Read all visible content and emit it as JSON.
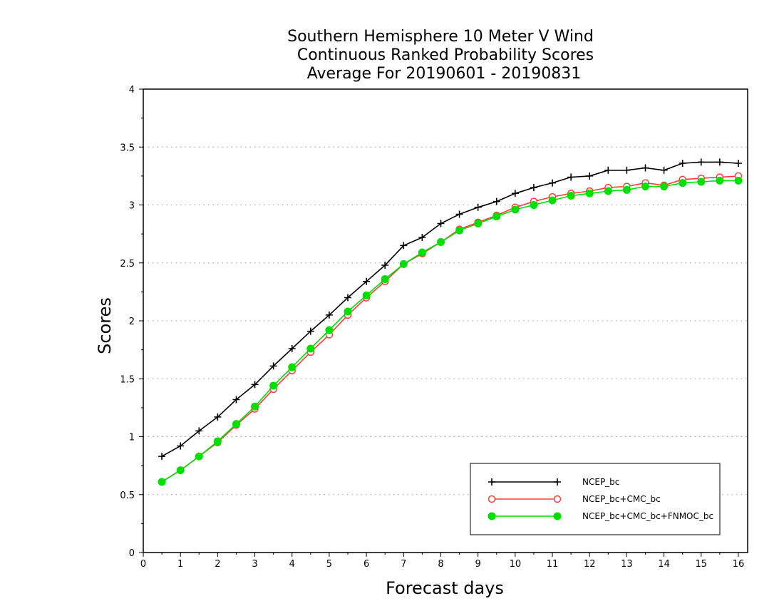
{
  "chart_data": {
    "type": "line",
    "title": [
      "Southern Hemisphere 10 Meter V Wind",
      "Continuous Ranked Probability Scores",
      "Average For 20190601 - 20190831"
    ],
    "xlabel": "Forecast days",
    "ylabel": "Scores",
    "xlim": [
      0,
      16.25
    ],
    "ylim": [
      0,
      4
    ],
    "xticks": [
      0,
      1,
      2,
      3,
      4,
      5,
      6,
      7,
      8,
      9,
      10,
      11,
      12,
      13,
      14,
      15,
      16
    ],
    "yticks": [
      0,
      0.5,
      1,
      1.5,
      2,
      2.5,
      3,
      3.5,
      4
    ],
    "ytick_labels": [
      "0",
      "0.5",
      "1",
      "1.5",
      "2",
      "2.5",
      "3",
      "3.5",
      "4"
    ],
    "grid": "horizontal dotted",
    "legend_position": "bottom-right",
    "x": [
      0.5,
      1,
      1.5,
      2,
      2.5,
      3,
      3.5,
      4,
      4.5,
      5,
      5.5,
      6,
      6.5,
      7,
      7.5,
      8,
      8.5,
      9,
      9.5,
      10,
      10.5,
      11,
      11.5,
      12,
      12.5,
      13,
      13.5,
      14,
      14.5,
      15,
      15.5,
      16
    ],
    "series": [
      {
        "name": "NCEP_bc",
        "color": "#000000",
        "marker": "plus",
        "values": [
          0.83,
          0.92,
          1.05,
          1.17,
          1.32,
          1.45,
          1.61,
          1.76,
          1.91,
          2.05,
          2.2,
          2.34,
          2.48,
          2.65,
          2.72,
          2.84,
          2.92,
          2.98,
          3.03,
          3.1,
          3.15,
          3.19,
          3.24,
          3.25,
          3.3,
          3.3,
          3.32,
          3.3,
          3.36,
          3.37,
          3.37,
          3.36
        ]
      },
      {
        "name": "NCEP_bc+CMC_bc",
        "color": "#ff3b3b",
        "marker": "open-circle",
        "values": [
          0.61,
          0.71,
          0.83,
          0.95,
          1.1,
          1.24,
          1.41,
          1.57,
          1.73,
          1.88,
          2.05,
          2.2,
          2.34,
          2.49,
          2.58,
          2.68,
          2.79,
          2.85,
          2.91,
          2.98,
          3.03,
          3.07,
          3.1,
          3.12,
          3.15,
          3.16,
          3.19,
          3.17,
          3.22,
          3.23,
          3.24,
          3.25
        ]
      },
      {
        "name": "NCEP_bc+CMC_bc+FNMOC_bc",
        "color": "#00e000",
        "marker": "filled-circle",
        "values": [
          0.61,
          0.71,
          0.83,
          0.96,
          1.11,
          1.26,
          1.44,
          1.6,
          1.76,
          1.92,
          2.08,
          2.22,
          2.36,
          2.49,
          2.59,
          2.68,
          2.78,
          2.84,
          2.9,
          2.96,
          3.0,
          3.04,
          3.08,
          3.1,
          3.12,
          3.13,
          3.16,
          3.16,
          3.19,
          3.2,
          3.21,
          3.21
        ]
      }
    ]
  }
}
